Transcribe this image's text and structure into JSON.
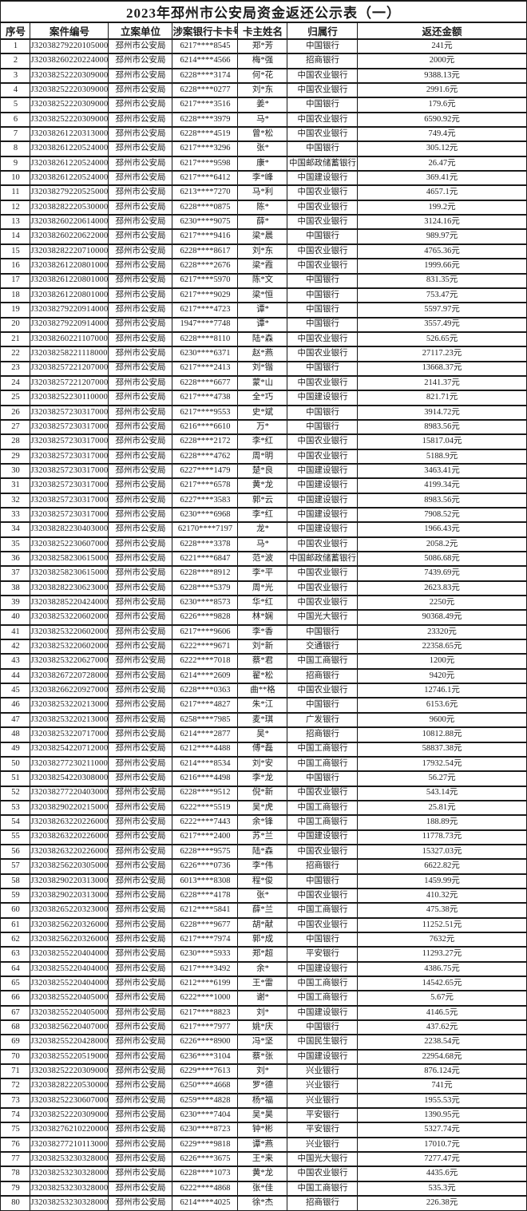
{
  "title": "2023年邳州市公安局资金返还公示表（一）",
  "columns": [
    "序号",
    "案件编号",
    "立案单位",
    "涉案银行卡卡号",
    "卡主姓名",
    "归属行",
    "返还金额"
  ],
  "colors": {
    "background": "#ffffff",
    "border": "#191919",
    "text": "#1c1c1c"
  },
  "rows": [
    [
      "1",
      "J3203827922010500001",
      "邳州市公安局",
      "6217****8545",
      "郑*芳",
      "中国银行",
      "241元"
    ],
    [
      "2",
      "J3203826022022400002",
      "邳州市公安局",
      "6214****4566",
      "梅*强",
      "招商银行",
      "2000元"
    ],
    [
      "3",
      "J3203825222030900015",
      "邳州市公安局",
      "6228****3174",
      "何*花",
      "中国农业银行",
      "9388.13元"
    ],
    [
      "4",
      "J3203825222030900015",
      "邳州市公安局",
      "6228****0277",
      "刘*东",
      "中国农业银行",
      "2991.6元"
    ],
    [
      "5",
      "J3203825222030900015",
      "邳州市公安局",
      "6217****3516",
      "姜*",
      "中国银行",
      "179.6元"
    ],
    [
      "6",
      "J3203825222030900015",
      "邳州市公安局",
      "6228****3979",
      "马*",
      "中国农业银行",
      "6590.92元"
    ],
    [
      "7",
      "J3203826122031300015",
      "邳州市公安局",
      "6228****4519",
      "曾*松",
      "中国农业银行",
      "749.4元"
    ],
    [
      "8",
      "J3203826122052400002",
      "邳州市公安局",
      "6217****3296",
      "张*",
      "中国银行",
      "305.12元"
    ],
    [
      "9",
      "J3203826122052400002",
      "邳州市公安局",
      "6217****9598",
      "康*",
      "中国邮政储蓄银行",
      "26.47元"
    ],
    [
      "10",
      "J3203826122052400002",
      "邳州市公安局",
      "6217****6412",
      "李*峰",
      "中国建设银行",
      "369.41元"
    ],
    [
      "11",
      "J3203827922052500004",
      "邳州市公安局",
      "6213****7270",
      "马*利",
      "中国农业银行",
      "4657.1元"
    ],
    [
      "12",
      "J3203828222053000005",
      "邳州市公安局",
      "6228****0875",
      "陈*",
      "中国农业银行",
      "199.2元"
    ],
    [
      "13",
      "J3203826022061400007",
      "邳州市公安局",
      "6230****9075",
      "薛*",
      "中国农业银行",
      "3124.16元"
    ],
    [
      "14",
      "J3203826022062200004",
      "邳州市公安局",
      "6217****9416",
      "梁*晨",
      "中国银行",
      "989.97元"
    ],
    [
      "15",
      "J3203828222071000003",
      "邳州市公安局",
      "6228****8617",
      "刘*东",
      "中国农业银行",
      "4765.36元"
    ],
    [
      "16",
      "J3203826122080100004",
      "邳州市公安局",
      "6228****2676",
      "梁*霞",
      "中国农业银行",
      "1999.66元"
    ],
    [
      "17",
      "J3203826122080100004",
      "邳州市公安局",
      "6217****5970",
      "陈*文",
      "中国银行",
      "831.35元"
    ],
    [
      "18",
      "J3203826122080100004",
      "邳州市公安局",
      "6217****9029",
      "梁*恒",
      "中国银行",
      "753.47元"
    ],
    [
      "19",
      "J3203827922091400007",
      "邳州市公安局",
      "6217****4723",
      "谭*",
      "中国银行",
      "5597.97元"
    ],
    [
      "20",
      "J3203827922091400007",
      "邳州市公安局",
      "1947****7748",
      "谭*",
      "中国银行",
      "3557.49元"
    ],
    [
      "21",
      "J3203826022110700002",
      "邳州市公安局",
      "6228****8110",
      "陆*森",
      "中国农业银行",
      "526.65元"
    ],
    [
      "22",
      "J3203825822111800005",
      "邳州市公安局",
      "6230****6371",
      "赵*燕",
      "中国农业银行",
      "27117.23元"
    ],
    [
      "23",
      "J3203825722120700001",
      "邳州市公安局",
      "6217****2413",
      "刘*锴",
      "中国银行",
      "13668.37元"
    ],
    [
      "24",
      "J3203825722120700001",
      "邳州市公安局",
      "6228****6677",
      "蒙*山",
      "中国农业银行",
      "2141.37元"
    ],
    [
      "25",
      "J3203825223011000008",
      "邳州市公安局",
      "6217****4738",
      "全*巧",
      "中国建设银行",
      "821.71元"
    ],
    [
      "26",
      "J3203825723031700003",
      "邳州市公安局",
      "6217****9553",
      "史*斌",
      "中国银行",
      "3914.72元"
    ],
    [
      "27",
      "J3203825723031700003",
      "邳州市公安局",
      "6216****6610",
      "万*",
      "中国银行",
      "8983.56元"
    ],
    [
      "28",
      "J3203825723031700003",
      "邳州市公安局",
      "6228****2172",
      "李*红",
      "中国农业银行",
      "15817.04元"
    ],
    [
      "29",
      "J3203825723031700003",
      "邳州市公安局",
      "6228****4762",
      "周*明",
      "中国农业银行",
      "5188.9元"
    ],
    [
      "30",
      "J3203825723031700003",
      "邳州市公安局",
      "6227****1479",
      "楚*良",
      "中国建设银行",
      "3463.41元"
    ],
    [
      "31",
      "J3203825723031700003",
      "邳州市公安局",
      "6217****6578",
      "黄*龙",
      "中国建设银行",
      "4199.34元"
    ],
    [
      "32",
      "J3203825723031700003",
      "邳州市公安局",
      "6227****3583",
      "郭*云",
      "中国建设银行",
      "8983.56元"
    ],
    [
      "33",
      "J3203825723031700003",
      "邳州市公安局",
      "6230****6968",
      "李*红",
      "中国建设银行",
      "7908.52元"
    ],
    [
      "34",
      "J3203828223040300005",
      "邳州市公安局",
      "62170****7197",
      "龙*",
      "中国建设银行",
      "1966.43元"
    ],
    [
      "35",
      "J3203825223060700003",
      "邳州市公安局",
      "6228****3378",
      "马*",
      "中国农业银行",
      "2058.2元"
    ],
    [
      "36",
      "J3203825823061500006",
      "邳州市公安局",
      "6221****6847",
      "范*波",
      "中国邮政储蓄银行",
      "5086.68元"
    ],
    [
      "37",
      "J3203825823061500006",
      "邳州市公安局",
      "6228****8912",
      "李*平",
      "中国农业银行",
      "7439.69元"
    ],
    [
      "38",
      "J3203828223062300007",
      "邳州市公安局",
      "6228****5379",
      "周*光",
      "中国农业银行",
      "2623.83元"
    ],
    [
      "39",
      "J3203828522042400001",
      "邳州市公安局",
      "6230****8573",
      "华*红",
      "中国农业银行",
      "2250元"
    ],
    [
      "40",
      "J3203825322060200004",
      "邳州市公安局",
      "6226****9828",
      "林*娴",
      "中国光大银行",
      "90368.49元"
    ],
    [
      "41",
      "J3203825322060200004",
      "邳州市公安局",
      "6217****9606",
      "李*香",
      "中国银行",
      "23320元"
    ],
    [
      "42",
      "J3203825322060200004",
      "邳州市公安局",
      "6222****9671",
      "刘*新",
      "交通银行",
      "22358.65元"
    ],
    [
      "43",
      "J3203825322062700015",
      "邳州市公安局",
      "6222****7018",
      "蔡*君",
      "中国工商银行",
      "1200元"
    ],
    [
      "44",
      "J3203826722072800002",
      "邳州市公安局",
      "6214****2609",
      "翟*松",
      "招商银行",
      "9420元"
    ],
    [
      "45",
      "J3203826622092700004",
      "邳州市公安局",
      "6228****0363",
      "曲**格",
      "中国农业银行",
      "12746.1元"
    ],
    [
      "46",
      "J3203825322021300016",
      "邳州市公安局",
      "6217****4827",
      "朱*江",
      "中国银行",
      "6153.6元"
    ],
    [
      "47",
      "J3203825322021300016",
      "邳州市公安局",
      "6258****7985",
      "麦*琪",
      "广发银行",
      "9600元"
    ],
    [
      "48",
      "J3203825322071700009",
      "邳州市公安局",
      "6214****2877",
      "吴*",
      "招商银行",
      "10812.88元"
    ],
    [
      "49",
      "J3203825422071200020",
      "邳州市公安局",
      "6212****4488",
      "傅*磊",
      "中国工商银行",
      "58837.38元"
    ],
    [
      "50",
      "J3203827723021100004",
      "邳州市公安局",
      "6214****8534",
      "刘*安",
      "中国工商银行",
      "17932.54元"
    ],
    [
      "51",
      "J3203825422030800018",
      "邳州市公安局",
      "6216****4498",
      "李*龙",
      "中国银行",
      "56.27元"
    ],
    [
      "52",
      "J3203827722040300006",
      "邳州市公安局",
      "6228****9512",
      "倪*新",
      "中国农业银行",
      "543.14元"
    ],
    [
      "53",
      "J3203829022021500007",
      "邳州市公安局",
      "6222****5519",
      "吴*虎",
      "中国工商银行",
      "25.81元"
    ],
    [
      "54",
      "J3203826322022600002",
      "邳州市公安局",
      "6222****7443",
      "余*锋",
      "中国工商银行",
      "188.89元"
    ],
    [
      "55",
      "J3203826322022600002",
      "邳州市公安局",
      "6217****2400",
      "苏*兰",
      "中国建设银行",
      "11778.73元"
    ],
    [
      "56",
      "J3203826322022600002",
      "邳州市公安局",
      "6228****9575",
      "陆*森",
      "中国农业银行",
      "15327.03元"
    ],
    [
      "57",
      "J3203825622030500006",
      "邳州市公安局",
      "6226****0736",
      "李*伟",
      "招商银行",
      "6622.82元"
    ],
    [
      "58",
      "J3203829022031300006",
      "邳州市公安局",
      "6013****8308",
      "程*俊",
      "中国银行",
      "1459.99元"
    ],
    [
      "59",
      "J3203829022031300006",
      "邳州市公安局",
      "6228****4178",
      "张*",
      "中国农业银行",
      "410.32元"
    ],
    [
      "60",
      "J3203826522032300005",
      "邳州市公安局",
      "6212****5841",
      "薛*兰",
      "中国工商银行",
      "475.38元"
    ],
    [
      "61",
      "J3203825622032600004",
      "邳州市公安局",
      "6228****9677",
      "胡*献",
      "中国农业银行",
      "11252.51元"
    ],
    [
      "62",
      "J3203825622032600004",
      "邳州市公安局",
      "6217****7974",
      "郭*成",
      "中国银行",
      "7632元"
    ],
    [
      "63",
      "J3203825522040400006",
      "邳州市公安局",
      "6230****5933",
      "郑*超",
      "平安银行",
      "11293.27元"
    ],
    [
      "64",
      "J3203825522040400006",
      "邳州市公安局",
      "6217****3492",
      "余*",
      "中国建设银行",
      "4386.75元"
    ],
    [
      "65",
      "J3203825522040400006",
      "邳州市公安局",
      "6212****6199",
      "王*雷",
      "中国工商银行",
      "14542.65元"
    ],
    [
      "66",
      "J3203825522040500011",
      "邳州市公安局",
      "6222****1000",
      "谢*",
      "中国工商银行",
      "5.67元"
    ],
    [
      "67",
      "J3203825522040500011",
      "邳州市公安局",
      "6217****8823",
      "刘*",
      "中国建设银行",
      "4146.5元"
    ],
    [
      "68",
      "J3203825622040700001",
      "邳州市公安局",
      "6217****7977",
      "姚*庆",
      "中国银行",
      "437.62元"
    ],
    [
      "69",
      "J3203825522042800015",
      "邳州市公安局",
      "6226****8900",
      "冯*坚",
      "中国民生银行",
      "2238.54元"
    ],
    [
      "70",
      "J3203825522051900014",
      "邳州市公安局",
      "6236****3104",
      "蔡*张",
      "中国建设银行",
      "22954.68元"
    ],
    [
      "71",
      "J3203825222030900015",
      "邳州市公安局",
      "6229****7613",
      "刘*",
      "兴业银行",
      "876.124元"
    ],
    [
      "72",
      "J3203828222053000005",
      "邳州市公安局",
      "6250****4668",
      "罗*德",
      "兴业银行",
      "741元"
    ],
    [
      "73",
      "J3203825223060700003",
      "邳州市公安局",
      "6259****4828",
      "杨*福",
      "兴业银行",
      "1955.53元"
    ],
    [
      "74",
      "J3203825222030900015",
      "邳州市公安局",
      "6230****7404",
      "吴*昊",
      "平安银行",
      "1390.95元"
    ],
    [
      "75",
      "J3203827621022000003",
      "邳州市公安局",
      "6230****8723",
      "钟*彬",
      "平安银行",
      "5327.74元"
    ],
    [
      "76",
      "J3203827721011300001",
      "邳州市公安局",
      "6229****9818",
      "谭*燕",
      "兴业银行",
      "17010.7元"
    ],
    [
      "77",
      "J3203825323032800015",
      "邳州市公安局",
      "6226****3675",
      "王*来",
      "中国光大银行",
      "7277.47元"
    ],
    [
      "78",
      "J3203825323032800015",
      "邳州市公安局",
      "6228****1073",
      "黄*龙",
      "中国农业银行",
      "4435.6元"
    ],
    [
      "79",
      "J3203825323032800015",
      "邳州市公安局",
      "6222****4868",
      "张*佳",
      "中国工商银行",
      "535.3元"
    ],
    [
      "80",
      "J3203825323032800015",
      "邳州市公安局",
      "6214****4025",
      "徐*杰",
      "招商银行",
      "226.38元"
    ]
  ]
}
